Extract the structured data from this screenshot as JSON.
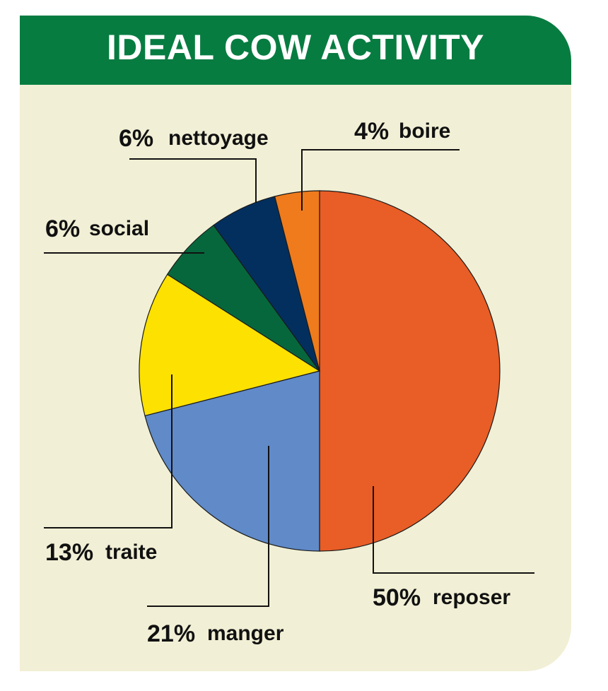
{
  "header": {
    "title": "IDEAL COW ACTIVITY"
  },
  "colors": {
    "header": "#077c41",
    "background": "#f1efd5",
    "slices": [
      "#e95d26",
      "#608ac8",
      "#fde100",
      "#07673c",
      "#032f5f",
      "#ef7b1c"
    ]
  },
  "chart_data": {
    "type": "pie",
    "title": "IDEAL COW ACTIVITY",
    "slices": [
      {
        "label": "reposer",
        "value": 50,
        "pct": "50%"
      },
      {
        "label": "manger",
        "value": 21,
        "pct": "21%"
      },
      {
        "label": "traite",
        "value": 13,
        "pct": "13%"
      },
      {
        "label": "social",
        "value": 6,
        "pct": "6%"
      },
      {
        "label": "nettoyage",
        "value": 6,
        "pct": "6%"
      },
      {
        "label": "boire",
        "value": 4,
        "pct": "4%"
      }
    ],
    "start_direction": "top",
    "order": "clockwise"
  }
}
